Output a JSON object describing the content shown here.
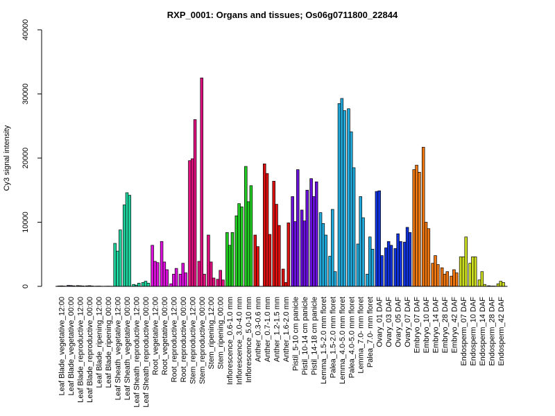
{
  "chart_data": {
    "type": "bar",
    "title": "RXP_0001: Organs and tissues; Os06g0711800_22844",
    "xlabel": "",
    "ylabel": "Cy3 signal intensity",
    "ylim": [
      0,
      40000
    ],
    "yticks": [
      0,
      10000,
      20000,
      30000,
      40000
    ],
    "grid": false,
    "legend": "none",
    "tick_labels": [
      "Leaf Blade_vegetative_12:00",
      "Leaf Blade_vegetative_00:00",
      "Leaf Blade_reproductive_12:00",
      "Leaf Blade_reproductive_00:00",
      "Leaf Blade_ripening_12:00",
      "Leaf Blade_ripening_00:00",
      "Leaf Sheath_vegetative_12:00",
      "Leaf Sheath_vegetative_00:00",
      "Leaf Sheath_reproductive_12:00",
      "Leaf Sheath_reproductive_00:00",
      "Root_vegetative_12:00",
      "Root_vegetative_00:00",
      "Root_reproductive_12:00",
      "Root_reproductive_00:00",
      "Stem_reproductive_12:00",
      "Stem_reproductive_00:00",
      "Stem_ripening_12:00",
      "Stem_ripening_00:00",
      "Inflorescence_0.6-1.0 mm",
      "Inflorescence_3.0-4.0 mm",
      "Inflorescence_5.0-10 mm",
      "Anther_0.3-0.6 mm",
      "Anther_0.7-1.0 mm",
      "Anther_1.2-1.5 mm",
      "Anther_1.6-2.0 mm",
      "Pistil_5-10 cm panicle",
      "Pistil_10-14 cm panicle",
      "Pistil_14-18 cm panicle",
      "Lemma_1.5-2.0 mm floret",
      "Palea_1.5-2.0 mm floret",
      "Lemma_4.0-5.0 mm floret",
      "Palea_4.0-5.0 mm floret",
      "Lemma_7.0- mm floret",
      "Palea_7.0- mm floret",
      "Ovary_01 DAF",
      "Ovary_03 DAF",
      "Ovary_05 DAF",
      "Ovary_07 DAF",
      "Embryo_07 DAF",
      "Embryo_10 DAF",
      "Embryo_14 DAF",
      "Embryo_28 DAF",
      "Embryo_42 DAF",
      "Endosperm_07 DAF",
      "Endosperm_10 DAF",
      "Endosperm_14 DAF",
      "Endosperm_28 DAF",
      "Endosperm_42 DAF"
    ],
    "bars_per_group": 3,
    "group_colors": [
      "#2f2f6e",
      "#2f2f6e",
      "#2f2f6e",
      "#2f2f6e",
      "#2f2f6e",
      "#2f2f6e",
      "#1fd6a0",
      "#1fd6a0",
      "#1fd6a0",
      "#1fd6a0",
      "#dd11dd",
      "#dd11dd",
      "#dd11dd",
      "#dd11dd",
      "#e0107f",
      "#e0107f",
      "#e0107f",
      "#e0107f",
      "#22cc22",
      "#22cc22",
      "#22cc22",
      "#dd1111",
      "#dd1111",
      "#dd1111",
      "#dd1111",
      "#6a11dd",
      "#6a11dd",
      "#6a11dd",
      "#22aadd",
      "#22aadd",
      "#22aadd",
      "#22aadd",
      "#22aadd",
      "#22aadd",
      "#1133dd",
      "#1133dd",
      "#1133dd",
      "#1133dd",
      "#ee7711",
      "#ee7711",
      "#ee7711",
      "#ee7711",
      "#ee7711",
      "#ccdd22",
      "#ccdd22",
      "#ccdd22",
      "#ccdd22",
      "#ccdd22"
    ],
    "values": [
      [
        60,
        80,
        50
      ],
      [
        150,
        130,
        90
      ],
      [
        120,
        100,
        70
      ],
      [
        80,
        110,
        60
      ],
      [
        40,
        50,
        30
      ],
      [
        30,
        40,
        30
      ],
      [
        6700,
        5500,
        8800
      ],
      [
        12700,
        14600,
        14200
      ],
      [
        300,
        200,
        500
      ],
      [
        600,
        800,
        500
      ],
      [
        6400,
        3900,
        3700
      ],
      [
        7000,
        3800,
        2600
      ],
      [
        400,
        1900,
        2800
      ],
      [
        1900,
        3600,
        2100
      ],
      [
        19600,
        19900,
        26000
      ],
      [
        3900,
        32500,
        1900
      ],
      [
        8000,
        3800,
        1300
      ],
      [
        1100,
        2500,
        1000
      ],
      [
        8400,
        6400,
        8400
      ],
      [
        11000,
        12900,
        12400
      ],
      [
        18700,
        13200,
        15700
      ],
      [
        8000,
        6200,
        0
      ],
      [
        19100,
        17600,
        8100
      ],
      [
        16400,
        12800,
        9500
      ],
      [
        2700,
        600,
        9900
      ],
      [
        14000,
        10100,
        18200
      ],
      [
        11900,
        10200,
        15000
      ],
      [
        16800,
        14000,
        16300
      ],
      [
        11500,
        9800,
        8000
      ],
      [
        4700,
        12000,
        2300
      ],
      [
        28500,
        29300,
        27400
      ],
      [
        27700,
        24100,
        18500
      ],
      [
        6600,
        14000,
        10700
      ],
      [
        1900,
        7700,
        5800
      ],
      [
        14800,
        14900,
        4800
      ],
      [
        6000,
        7000,
        6400
      ],
      [
        5900,
        8200,
        7000
      ],
      [
        6900,
        9200,
        8400
      ],
      [
        18200,
        18900,
        17800
      ],
      [
        21700,
        10000,
        9000
      ],
      [
        3600,
        4800,
        3400
      ],
      [
        2900,
        1900,
        2300
      ],
      [
        1600,
        2600,
        2100
      ],
      [
        4600,
        4600,
        7700
      ],
      [
        3600,
        4600,
        4600
      ],
      [
        1000,
        2300,
        300
      ],
      [
        100,
        50,
        50
      ],
      [
        400,
        800,
        600
      ]
    ]
  }
}
